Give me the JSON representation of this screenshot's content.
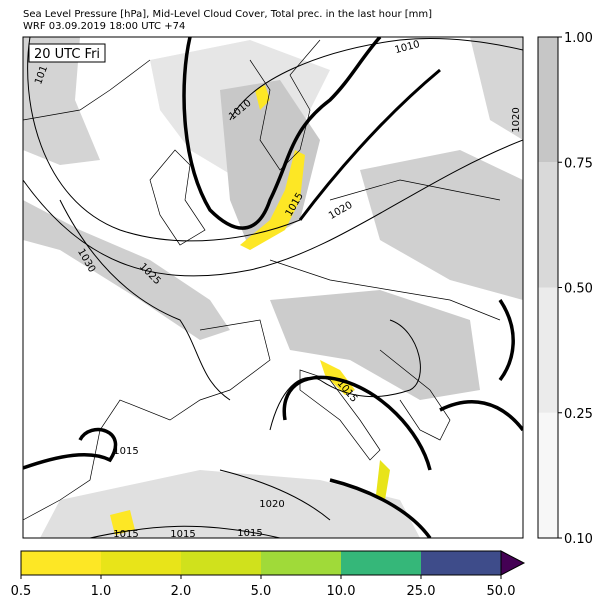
{
  "header": {
    "line1": "Sea Level Pressure [hPa], Mid-Level Cloud Cover, Total prec. in the last hour [mm]",
    "line2": "WRF 03.09.2019 18:00 UTC +74"
  },
  "map": {
    "time_label": "20 UTC Fri",
    "isobar_labels": [
      "101",
      "1010",
      "1010",
      "1015",
      "1020",
      "1020",
      "1030",
      "1025",
      "1015",
      "1015",
      "1020",
      "1015",
      "1015",
      "1015"
    ]
  },
  "cloud_colorbar": {
    "ticks": [
      "0.10",
      "0.25",
      "0.50",
      "0.75",
      "1.00"
    ],
    "colors": [
      "#f7f7f7",
      "#ebebeb",
      "#d9d9d9",
      "#c6c6c6"
    ]
  },
  "precip_colorbar": {
    "ticks": [
      "0.5",
      "1.0",
      "2.0",
      "5.0",
      "10.0",
      "25.0",
      "50.0"
    ],
    "colors": [
      "#fde725",
      "#e8e419",
      "#d0e11c",
      "#a0da39",
      "#35b779",
      "#3e4c8a",
      "#440154"
    ]
  }
}
